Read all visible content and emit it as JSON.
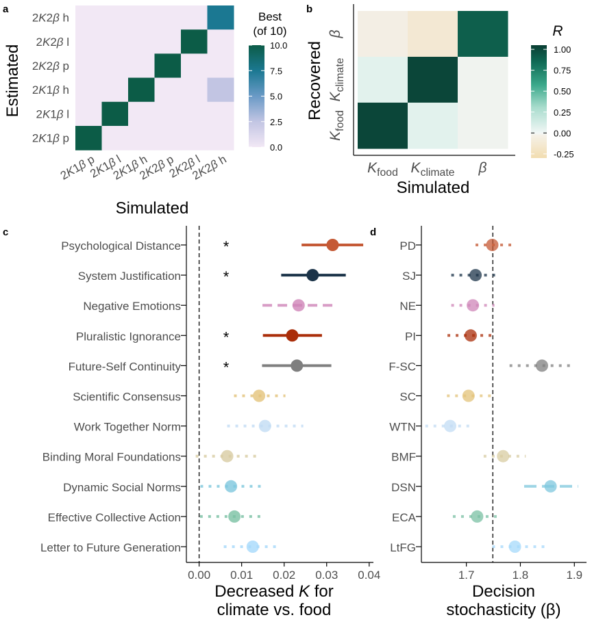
{
  "colors": {
    "panel_a_background": "#f2e8f5",
    "panel_a_best": "#0c5c47",
    "panel_a_h": "#1b7892",
    "panel_a_low": "#c2c5e3",
    "cross_colors": {
      "0": "#f3efe7",
      "1": "#f3ead5",
      "2": "#0f5f50",
      "3": "#e2efec",
      "4": "#0b4337",
      "5": "#eeeeee",
      "6": "#0b4738",
      "7": "#e4f2ee",
      "8": "#eeeeee"
    },
    "axis": "#000000",
    "tick_text": "#4d4d4d"
  },
  "chart_data": [
    {
      "panel_label": "a",
      "type": "heatmap",
      "xlabel": "Simulated",
      "ylabel": "Estimated",
      "x_categories": [
        "2K1β p",
        "2K1β l",
        "2K1β h",
        "2K2β p",
        "2K2β l",
        "2K2β h"
      ],
      "y_categories_top_to_bottom": [
        "2K2β h",
        "2K2β l",
        "2K2β p",
        "2K1β h",
        "2K1β l",
        "2K1β p"
      ],
      "values_top_to_bottom": [
        [
          0,
          0,
          0,
          0,
          0,
          8.5
        ],
        [
          0,
          0,
          0,
          0,
          10,
          0
        ],
        [
          0,
          0,
          0,
          10,
          0,
          0
        ],
        [
          0,
          0,
          10,
          0,
          0,
          1.5
        ],
        [
          0,
          10,
          0,
          0,
          0,
          0
        ],
        [
          10,
          0,
          0,
          0,
          0,
          0
        ]
      ],
      "legend": {
        "title_line1": "Best",
        "title_line2": "(of 10)",
        "ticks": [
          "10.0",
          "7.5",
          "5.0",
          "2.5",
          "0.0"
        ],
        "range": [
          0,
          10
        ]
      }
    },
    {
      "panel_label": "b",
      "type": "heatmap",
      "xlabel": "Simulated",
      "ylabel": "Recovered",
      "x_categories": [
        "K_food",
        "K_climate",
        "β"
      ],
      "y_categories_top_to_bottom": [
        "β",
        "K_climate",
        "K_food"
      ],
      "values_top_to_bottom": [
        [
          -0.03,
          -0.12,
          0.85
        ],
        [
          0.05,
          1.0,
          0.0
        ],
        [
          1.0,
          0.05,
          0.0
        ]
      ],
      "legend": {
        "title": "R",
        "ticks": [
          "1.00",
          "0.75",
          "0.50",
          "0.25",
          "0.00",
          "-0.25"
        ],
        "range": [
          -0.3,
          1.05
        ]
      }
    },
    {
      "panel_label": "c",
      "type": "scatter",
      "xlabel_line1": "Decreased K for",
      "xlabel_line2": "climate vs. food",
      "xlim": [
        -0.003,
        0.041
      ],
      "x_ticks": [
        "0.00",
        "0.01",
        "0.02",
        "0.03",
        "0.04"
      ],
      "x_tick_values": [
        0,
        0.01,
        0.02,
        0.03,
        0.04
      ],
      "reference_line": 0,
      "significance_marker": "*",
      "rows": [
        {
          "label": "Psychological Distance",
          "mean": 0.0314,
          "low": 0.0241,
          "high": 0.0386,
          "color": "#c55a36",
          "sig": true
        },
        {
          "label": "System Justification",
          "mean": 0.0267,
          "low": 0.0193,
          "high": 0.0345,
          "color": "#1c3449",
          "sig": true
        },
        {
          "label": "Negative Emotions",
          "mean": 0.0234,
          "low": 0.0149,
          "high": 0.0322,
          "color": "#cf85b8",
          "sig": false
        },
        {
          "label": "Pluralistic Ignorance",
          "mean": 0.0219,
          "low": 0.015,
          "high": 0.0289,
          "color": "#aa2e0a",
          "sig": true
        },
        {
          "label": "Future-Self Continuity",
          "mean": 0.023,
          "low": 0.0148,
          "high": 0.0311,
          "color": "#7f7f7f",
          "sig": true
        },
        {
          "label": "Scientific Consensus",
          "mean": 0.0141,
          "low": 0.0082,
          "high": 0.0203,
          "color": "#e3c37a",
          "sig": false
        },
        {
          "label": "Work Together Norm",
          "mean": 0.0155,
          "low": 0.0066,
          "high": 0.0245,
          "color": "#c2dcf4",
          "sig": false
        },
        {
          "label": "Binding Moral Foundations",
          "mean": 0.0066,
          "low": -0.0008,
          "high": 0.014,
          "color": "#d8cca2",
          "sig": false
        },
        {
          "label": "Dynamic Social Norms",
          "mean": 0.0075,
          "low": 0.0003,
          "high": 0.0149,
          "color": "#7ec7dd",
          "sig": false
        },
        {
          "label": "Effective Collective Action",
          "mean": 0.0083,
          "low": 0.0002,
          "high": 0.0155,
          "color": "#79c0a3",
          "sig": false
        },
        {
          "label": "Letter to Future Generation",
          "mean": 0.0126,
          "low": 0.0058,
          "high": 0.0181,
          "color": "#a6d9fb",
          "sig": false
        }
      ]
    },
    {
      "panel_label": "d",
      "type": "scatter",
      "xlabel_line1": "Decision",
      "xlabel_line2": "stochasticity (β)",
      "xlim": [
        1.6167,
        1.9225
      ],
      "x_ticks": [
        "1.7",
        "1.8",
        "1.9"
      ],
      "x_tick_values": [
        1.7,
        1.8,
        1.9
      ],
      "reference_line": 1.749,
      "rows": [
        {
          "label": "PD",
          "mean": 1.748,
          "low": 1.717,
          "high": 1.785
        },
        {
          "label": "SJ",
          "mean": 1.717,
          "low": 1.672,
          "high": 1.762
        },
        {
          "label": "NE",
          "mean": 1.712,
          "low": 1.672,
          "high": 1.752
        },
        {
          "label": "PI",
          "mean": 1.708,
          "low": 1.665,
          "high": 1.749
        },
        {
          "label": "F-SC",
          "mean": 1.84,
          "low": 1.78,
          "high": 1.9
        },
        {
          "label": "SC",
          "mean": 1.704,
          "low": 1.664,
          "high": 1.746
        },
        {
          "label": "WTN",
          "mean": 1.67,
          "low": 1.624,
          "high": 1.713
        },
        {
          "label": "BMF",
          "mean": 1.768,
          "low": 1.732,
          "high": 1.81
        },
        {
          "label": "DSN",
          "mean": 1.856,
          "low": 1.807,
          "high": 1.907
        },
        {
          "label": "ECA",
          "mean": 1.72,
          "low": 1.675,
          "high": 1.762
        },
        {
          "label": "LtFG",
          "mean": 1.79,
          "low": 1.748,
          "high": 1.845
        }
      ]
    }
  ]
}
